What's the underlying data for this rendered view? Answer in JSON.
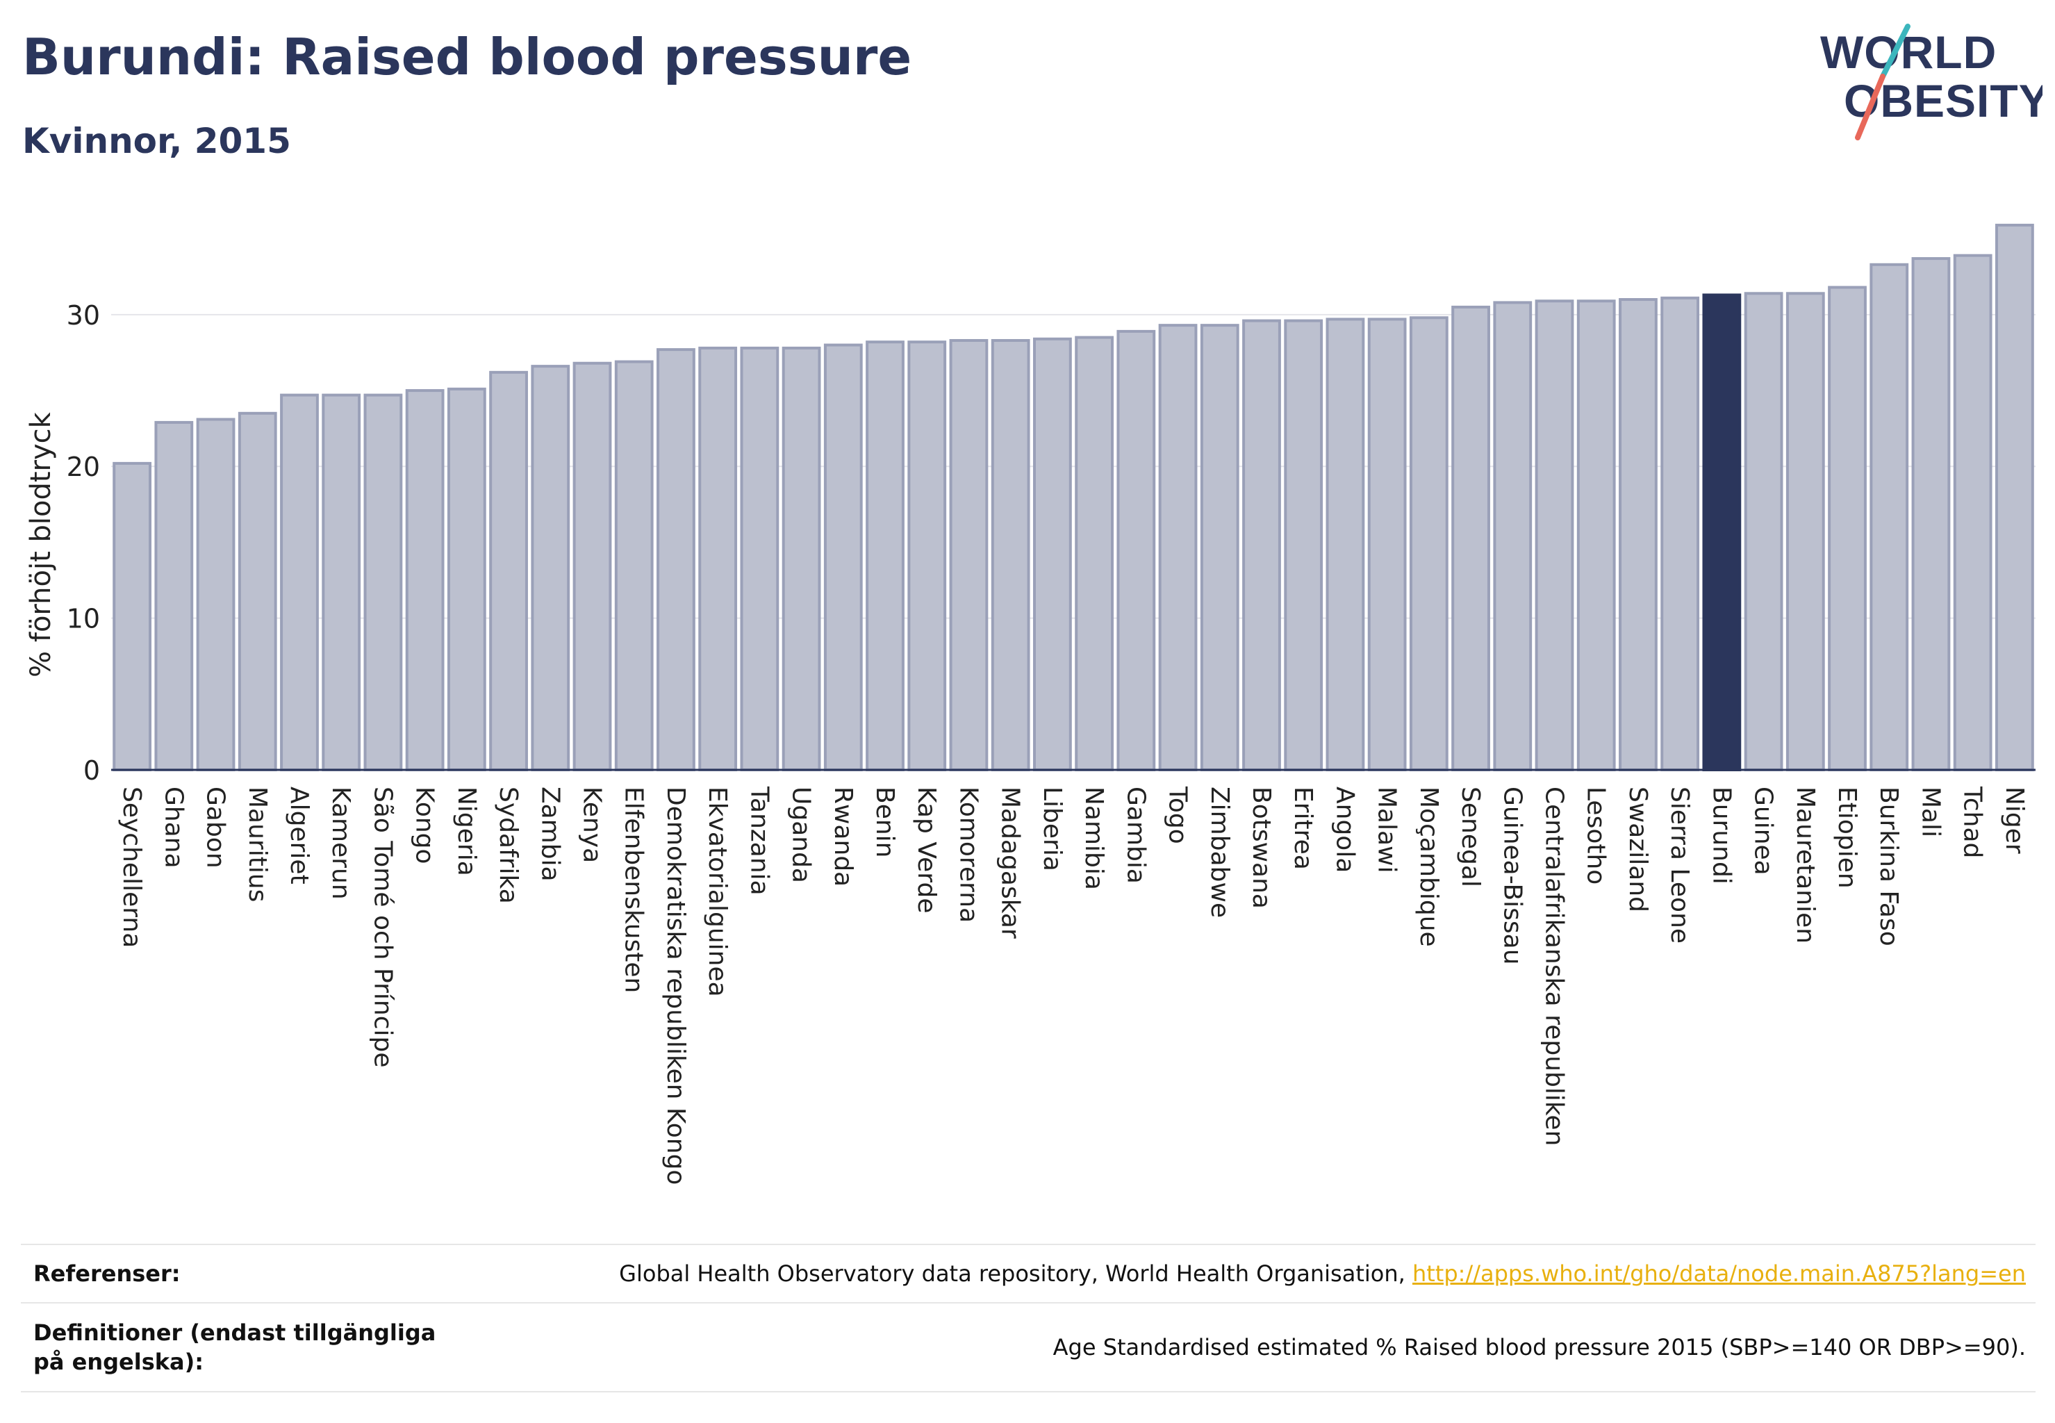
{
  "header": {
    "title": "Burundi: Raised blood pressure",
    "subtitle": "Kvinnor, 2015"
  },
  "logo": {
    "line1": "WORLD",
    "line2": "OBESITY"
  },
  "colors": {
    "bar": "#bcc0cf",
    "bar_stroke": "#9aa0b8",
    "highlight": "#2b365c",
    "text": "#2b365c",
    "link": "#e8b00f"
  },
  "chart_data": {
    "type": "bar",
    "title": "Burundi: Raised blood pressure",
    "subtitle": "Kvinnor, 2015",
    "ylabel": "% förhöjt blodtryck",
    "xlabel": "",
    "ylim": [
      0,
      37
    ],
    "yticks": [
      0,
      10,
      20,
      30
    ],
    "grid": true,
    "highlight": "Burundi",
    "categories": [
      "Seychellerna",
      "Ghana",
      "Gabon",
      "Mauritius",
      "Algeriet",
      "Kamerun",
      "São Tomé och Príncipe",
      "Kongo",
      "Nigeria",
      "Sydafrika",
      "Zambia",
      "Kenya",
      "Elfenbenskusten",
      "Demokratiska republiken Kongo",
      "Ekvatorialguinea",
      "Tanzania",
      "Uganda",
      "Rwanda",
      "Benin",
      "Kap Verde",
      "Komorerna",
      "Madagaskar",
      "Liberia",
      "Namibia",
      "Gambia",
      "Togo",
      "Zimbabwe",
      "Botswana",
      "Eritrea",
      "Angola",
      "Malawi",
      "Moçambique",
      "Senegal",
      "Guinea-Bissau",
      "Centralafrikanska republiken",
      "Lesotho",
      "Swaziland",
      "Sierra Leone",
      "Burundi",
      "Guinea",
      "Mauretanien",
      "Etiopien",
      "Burkina Faso",
      "Mali",
      "Tchad",
      "Niger"
    ],
    "values": [
      20.2,
      22.9,
      23.1,
      23.5,
      24.7,
      24.7,
      24.7,
      25.0,
      25.1,
      26.2,
      26.6,
      26.8,
      26.9,
      27.7,
      27.8,
      27.8,
      27.8,
      28.0,
      28.2,
      28.2,
      28.3,
      28.3,
      28.4,
      28.5,
      28.9,
      29.3,
      29.3,
      29.6,
      29.6,
      29.7,
      29.7,
      29.8,
      30.5,
      30.8,
      30.9,
      30.9,
      31.0,
      31.1,
      31.3,
      31.4,
      31.4,
      31.8,
      33.3,
      33.7,
      33.9,
      35.9
    ]
  },
  "references": {
    "ref_label": "Referenser:",
    "ref_text": "Global Health Observatory data repository, World Health Organisation, ",
    "ref_link": "http://apps.who.int/gho/data/node.main.A875?lang=en",
    "def_label": "Definitioner (endast tillgängliga på engelska):",
    "def_text": "Age Standardised estimated % Raised blood pressure 2015 (SBP>=140 OR DBP>=90)."
  }
}
